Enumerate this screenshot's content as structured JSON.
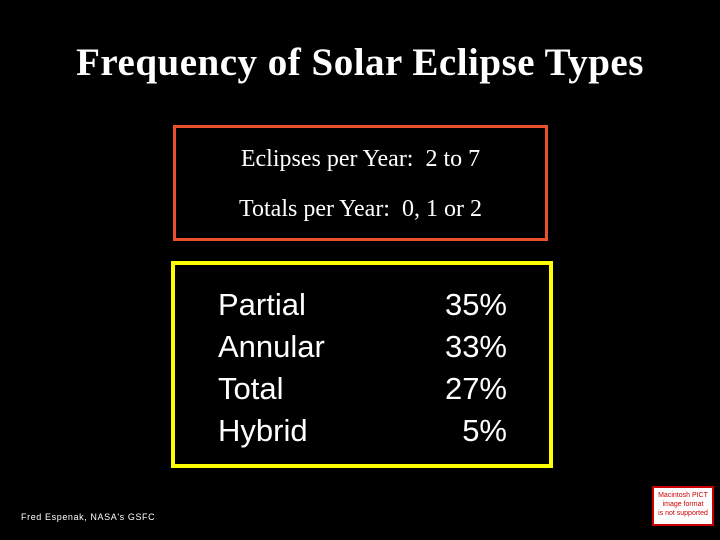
{
  "slide": {
    "title": "Frequency of Solar Eclipse Types",
    "eclipse_stats": {
      "line1": "Eclipses per Year:  2 to 7",
      "line2": "Totals per Year:  0, 1 or 2"
    },
    "types": [
      {
        "label": "Partial",
        "value": "35%"
      },
      {
        "label": "Annular",
        "value": "33%"
      },
      {
        "label": "Total",
        "value": "27%"
      },
      {
        "label": "Hybrid",
        "value": "5%"
      }
    ],
    "credit": "Fred Espenak, NASA's GSFC",
    "pict_placeholder": {
      "line1": "Macintosh PICT",
      "line2": "image format",
      "line3": "is not supported"
    }
  },
  "colors": {
    "background": "#000000",
    "text": "#ffffff",
    "orange_border": "#e8512b",
    "yellow_border": "#ffff00",
    "placeholder_red": "#cc0000"
  }
}
